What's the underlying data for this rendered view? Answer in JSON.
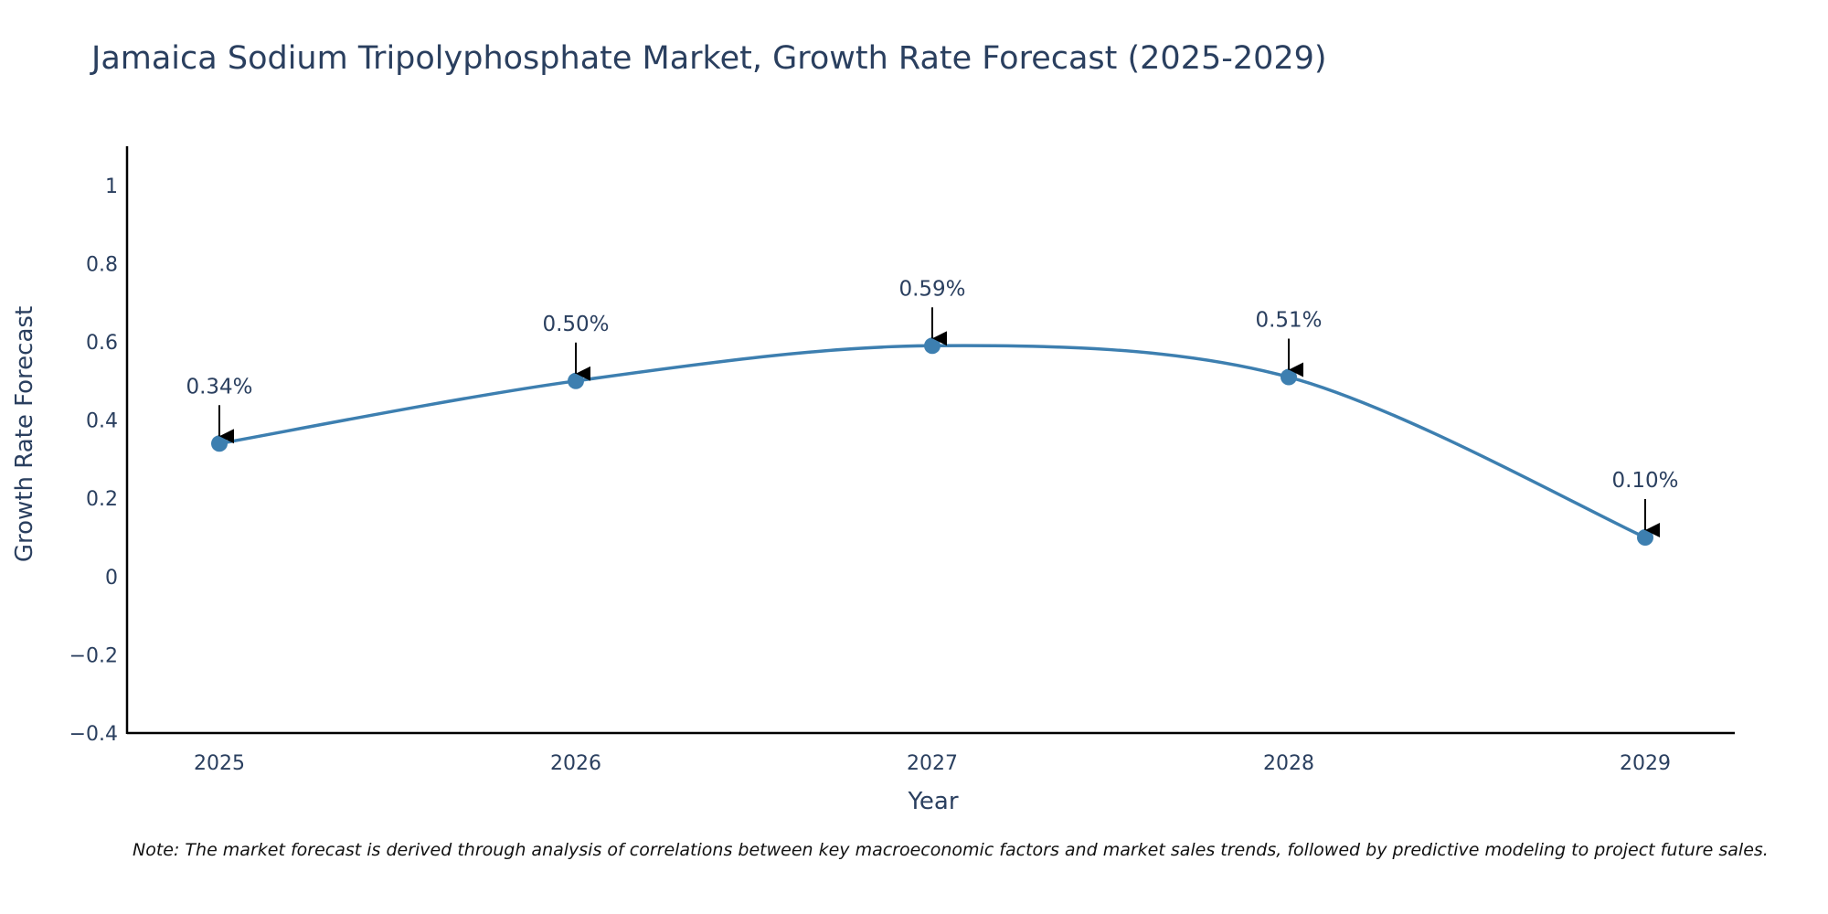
{
  "chart_data": {
    "type": "line",
    "title": "Jamaica Sodium Tripolyphosphate Market, Growth Rate Forecast (2025-2029)",
    "xlabel": "Year",
    "ylabel": "Growth Rate Forecast",
    "categories": [
      "2025",
      "2026",
      "2027",
      "2028",
      "2029"
    ],
    "series": [
      {
        "name": "Growth Rate Forecast",
        "values": [
          0.34,
          0.5,
          0.59,
          0.51,
          0.1
        ]
      }
    ],
    "data_labels": [
      "0.34%",
      "0.50%",
      "0.59%",
      "0.51%",
      "0.10%"
    ],
    "ylim": [
      -0.4,
      1.1
    ],
    "yticks": [
      -0.4,
      -0.2,
      0,
      0.2,
      0.4,
      0.6,
      0.8,
      1
    ],
    "ytick_labels": [
      "−0.4",
      "−0.2",
      "0",
      "0.2",
      "0.4",
      "0.6",
      "0.8",
      "1"
    ],
    "grid": false,
    "line_color": "#3d7fb0",
    "note": "Note: The market forecast is derived through analysis of correlations between key macroeconomic factors and market sales trends, followed by predictive modeling to project future sales."
  }
}
